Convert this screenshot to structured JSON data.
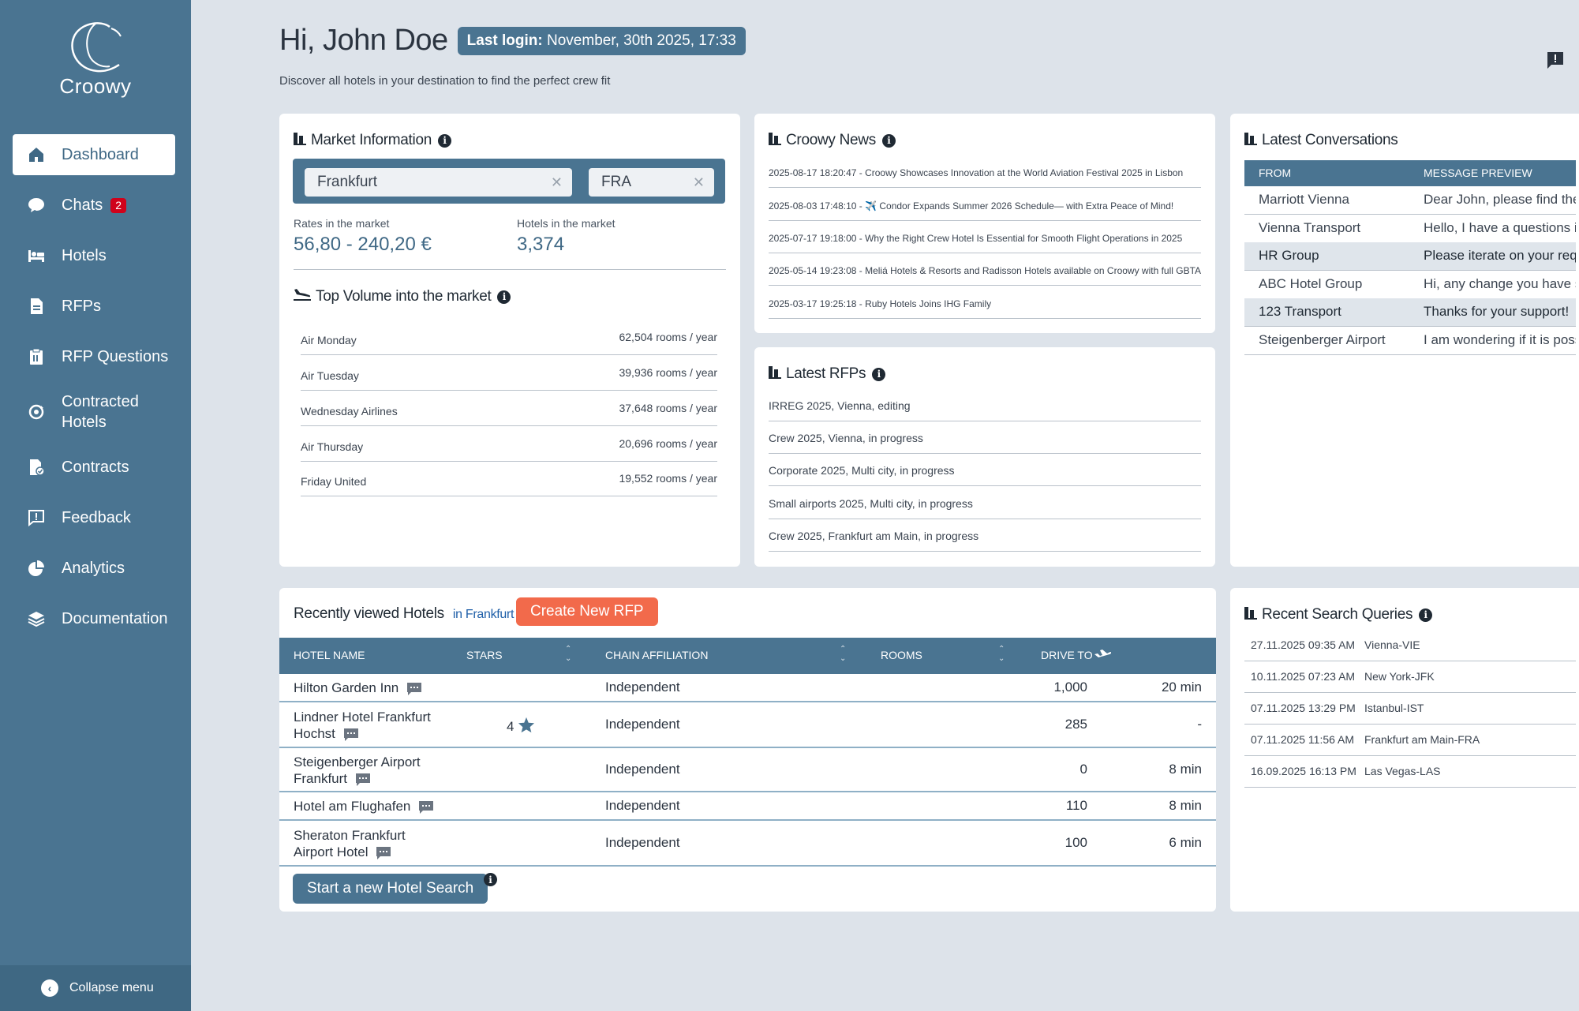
{
  "sidebar": {
    "logo_text": "Croowy",
    "items": [
      {
        "label": "Dashboard",
        "icon": "home-icon"
      },
      {
        "label": "Chats",
        "icon": "chat-bubble-icon",
        "badge": "2"
      },
      {
        "label": "Hotels",
        "icon": "bed-icon"
      },
      {
        "label": "RFPs",
        "icon": "document-icon"
      },
      {
        "label": "RFP Questions",
        "icon": "clipboard-icon"
      },
      {
        "label": "Contracted Hotels",
        "icon": "sync-icon"
      },
      {
        "label": "Contracts",
        "icon": "contract-icon"
      },
      {
        "label": "Feedback",
        "icon": "feedback-icon"
      },
      {
        "label": "Analytics",
        "icon": "pie-chart-icon"
      },
      {
        "label": "Documentation",
        "icon": "layers-icon"
      }
    ],
    "collapse_label": "Collapse menu"
  },
  "header": {
    "greeting": "Hi, John Doe",
    "last_login_label": "Last login:",
    "last_login_value": "November, 30th 2025, 17:33",
    "subtitle": "Discover all hotels in your destination to find the perfect crew fit"
  },
  "market": {
    "title": "Market Information",
    "city": "Frankfurt",
    "airport": "FRA",
    "rates_label": "Rates in the market",
    "rates_value": "56,80 - 240,20 €",
    "hotels_label": "Hotels in the market",
    "hotels_value": "3,374",
    "volume_title": "Top Volume into the market",
    "volume": [
      {
        "name": "Air Monday",
        "value": "62,504 rooms / year"
      },
      {
        "name": "Air Tuesday",
        "value": "39,936 rooms / year"
      },
      {
        "name": "Wednesday Airlines",
        "value": "37,648 rooms / year"
      },
      {
        "name": "Air Thursday",
        "value": "20,696 rooms / year"
      },
      {
        "name": "Friday United",
        "value": "19,552 rooms / year"
      }
    ]
  },
  "news": {
    "title": "Croowy News",
    "items": [
      "2025-08-17 18:20:47 - Croowy Showcases Innovation at the World Aviation Festival 2025 in Lisbon",
      "2025-08-03 17:48:10 - ✈️ Condor Expands Summer 2026 Schedule— with Extra Peace of Mind!",
      "2025-07-17 19:18:00 - Why the Right Crew Hotel Is Essential for Smooth Flight Operations in 2025",
      "2025-05-14 19:23:08 - Meliá Hotels & Resorts and Radisson Hotels available on Croowy with full GBTA file",
      "2025-03-17 19:25:18 - Ruby Hotels Joins IHG Family"
    ]
  },
  "rfps": {
    "title": "Latest RFPs",
    "items": [
      "IRREG 2025, Vienna, editing",
      "Crew 2025, Vienna, in progress",
      "Corporate 2025, Multi city, in progress",
      "Small airports 2025, Multi city, in progress",
      "Crew 2025, Frankfurt am Main, in progress"
    ]
  },
  "conversations": {
    "title": "Latest Conversations",
    "col_from": "FROM",
    "col_preview": "MESSAGE PREVIEW",
    "rows": [
      {
        "from": "Marriott Vienna",
        "preview": "Dear John, please find the u",
        "highlight": false
      },
      {
        "from": "Vienna Transport",
        "preview": "Hello, I have a questions in",
        "highlight": false
      },
      {
        "from": "HR Group",
        "preview": "Please iterate on your reqe",
        "highlight": true
      },
      {
        "from": "ABC Hotel Group",
        "preview": "Hi, any change you have se",
        "highlight": false
      },
      {
        "from": "123 Transport",
        "preview": "Thanks for your support!",
        "highlight": true
      },
      {
        "from": "Steigenberger Airport",
        "preview": "I am wondering if it is possi",
        "highlight": false
      }
    ]
  },
  "hotels": {
    "title": "Recently viewed Hotels",
    "location": "in Frankfurt",
    "create_button": "Create New RFP",
    "columns": {
      "name": "HOTEL NAME",
      "stars": "STARS",
      "chain": "CHAIN AFFILIATION",
      "rooms": "ROOMS",
      "drive": "DRIVE TO"
    },
    "rows": [
      {
        "name": "Hilton Garden Inn",
        "stars": "",
        "chain": "Independent",
        "rooms": "1,000",
        "drive": "20 min"
      },
      {
        "name": "Lindner Hotel Frankfurt Hochst",
        "stars": "4",
        "chain": "Independent",
        "rooms": "285",
        "drive": "-"
      },
      {
        "name": "Steigenberger Airport Frankfurt",
        "stars": "",
        "chain": "Independent",
        "rooms": "0",
        "drive": "8 min"
      },
      {
        "name": "Hotel am Flughafen",
        "stars": "",
        "chain": "Independent",
        "rooms": "110",
        "drive": "8 min"
      },
      {
        "name": "Sheraton Frankfurt Airport Hotel",
        "stars": "",
        "chain": "Independent",
        "rooms": "100",
        "drive": "6 min"
      }
    ],
    "search_button": "Start a new Hotel Search"
  },
  "recent_search": {
    "title": "Recent Search Queries",
    "rows": [
      {
        "date": "27.11.2025 09:35 AM",
        "query": "Vienna-VIE"
      },
      {
        "date": "10.11.2025 07:23 AM",
        "query": "New York-JFK"
      },
      {
        "date": "07.11.2025 13:29 PM",
        "query": "Istanbul-IST"
      },
      {
        "date": "07.11.2025 11:56 AM",
        "query": "Frankfurt am Main-FRA"
      },
      {
        "date": "16.09.2025 16:13 PM",
        "query": "Las Vegas-LAS"
      }
    ]
  },
  "colors": {
    "sidebar": "#4a7491",
    "accent": "#f26a4b",
    "badge": "#d0021b",
    "background": "#dde3ea"
  }
}
